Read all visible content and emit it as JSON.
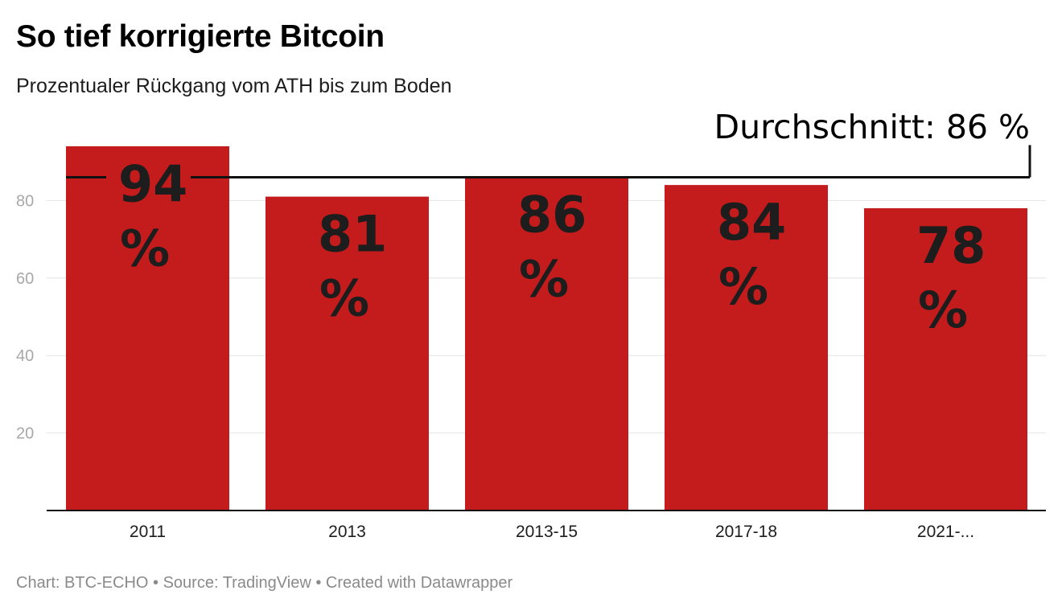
{
  "header": {
    "title": "So tief korrigierte Bitcoin",
    "subtitle": "Prozentualer Rückgang vom ATH bis zum Boden"
  },
  "footer": {
    "credit": "Chart: BTC-ECHO • Source: TradingView • Created with Datawrapper"
  },
  "chart_data": {
    "type": "bar",
    "title": "So tief korrigierte Bitcoin",
    "subtitle": "Prozentualer Rückgang vom ATH bis zum Boden",
    "xlabel": "",
    "ylabel": "",
    "categories": [
      "2011",
      "2013",
      "2013-15",
      "2017-18",
      "2021-..."
    ],
    "values": [
      94,
      81,
      86,
      84,
      78
    ],
    "value_labels": [
      "94 %",
      "81 %",
      "86 %",
      "84 %",
      "78 %"
    ],
    "ylim": [
      0,
      95
    ],
    "yticks": [
      20,
      40,
      60,
      80
    ],
    "grid": true,
    "bar_color": "#c41c1c",
    "annotation": {
      "text": "Durchschnitt: 86 %",
      "value": 86
    }
  }
}
